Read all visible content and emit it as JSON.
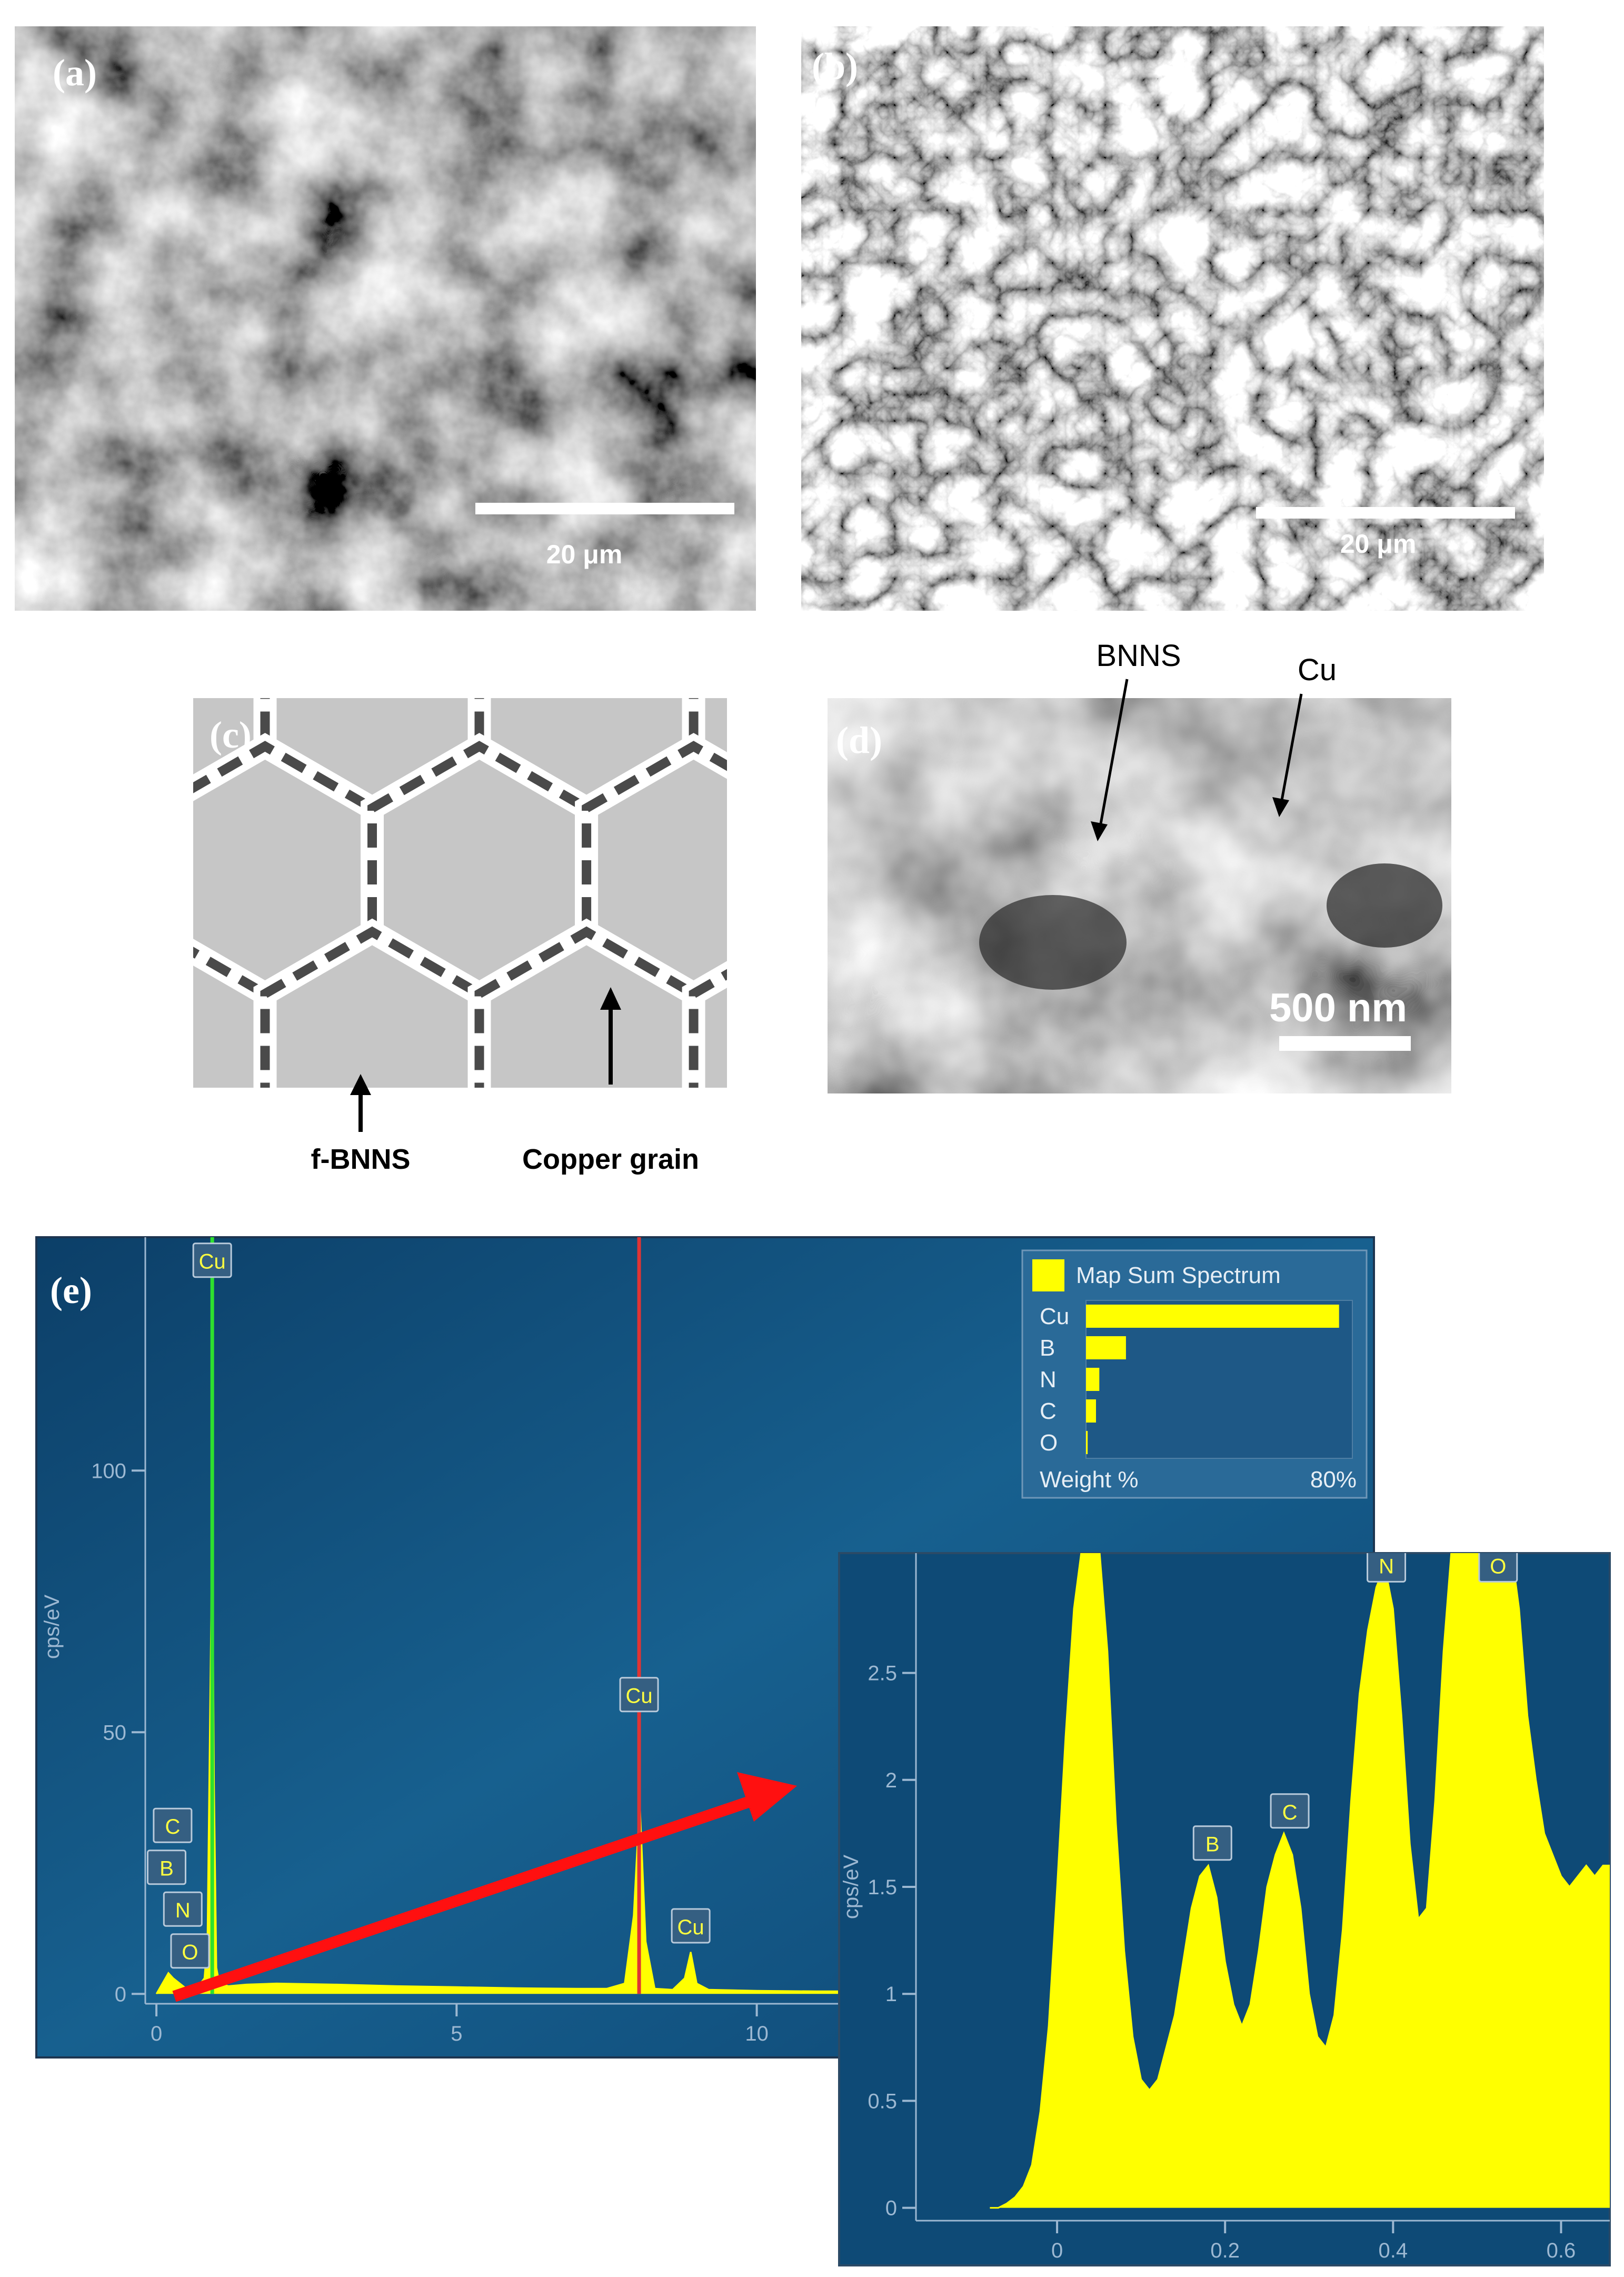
{
  "panels": {
    "a": {
      "label": "(a)",
      "scale_bar": "20 μm"
    },
    "b": {
      "label": "(b)",
      "scale_bar": "20 μm"
    },
    "c": {
      "label": "(c)",
      "annotations": [
        "f-BNNS",
        "Copper grain"
      ]
    },
    "d": {
      "label": "(d)",
      "annotations": [
        "BNNS",
        "Cu"
      ],
      "scale_bar": "500 nm"
    },
    "e": {
      "label": "(e)"
    }
  },
  "chart_data": [
    {
      "type": "area",
      "y_label": "cps/eV",
      "color": "#ffff00",
      "x": [
        0,
        0.1,
        0.2,
        0.28,
        0.39,
        0.5,
        0.6,
        0.7,
        0.8,
        0.85,
        0.9,
        0.93,
        0.96,
        1.0,
        1.05,
        1.2,
        1.5,
        2,
        3,
        4,
        5,
        6,
        7,
        7.5,
        7.8,
        7.95,
        8.05,
        8.15,
        8.3,
        8.6,
        8.8,
        8.9,
        9.0,
        9.2,
        10,
        11,
        11.5
      ],
      "values": [
        0,
        2,
        4,
        3,
        2,
        1,
        1,
        1.5,
        3,
        10,
        60,
        92,
        40,
        5,
        2,
        1.5,
        1.8,
        2,
        1.8,
        1.5,
        1.3,
        1.1,
        1,
        1,
        2,
        15,
        37,
        10,
        1,
        0.8,
        3,
        8,
        2,
        0.8,
        0.6,
        0.5,
        0.5
      ],
      "markers": [
        {
          "x": 0.93,
          "color": "#2ee02e"
        },
        {
          "x": 8.04,
          "color": "#e03434"
        }
      ],
      "peak_labels": [
        {
          "label": "Cu",
          "x": 0.93,
          "y": 140
        },
        {
          "label": "C",
          "x": 0.27,
          "y": 32
        },
        {
          "label": "B",
          "x": 0.17,
          "y": 24
        },
        {
          "label": "N",
          "x": 0.44,
          "y": 16
        },
        {
          "label": "O",
          "x": 0.56,
          "y": 8
        },
        {
          "label": "Cu",
          "x": 8.04,
          "y": 57
        },
        {
          "label": "Cu",
          "x": 8.9,
          "y": 12.8
        }
      ],
      "xlim": [
        -2,
        20.28
      ],
      "ylim": [
        -4.3,
        144.6
      ],
      "xticks": [
        0,
        5,
        10
      ],
      "yticks": [
        0,
        50,
        100
      ]
    },
    {
      "type": "area",
      "y_label": "cps/eV",
      "color": "#ffff00",
      "x": [
        -0.08,
        -0.07,
        -0.06,
        -0.05,
        -0.04,
        -0.03,
        -0.02,
        -0.01,
        0,
        0.01,
        0.02,
        0.03,
        0.04,
        0.05,
        0.06,
        0.07,
        0.08,
        0.09,
        0.1,
        0.11,
        0.12,
        0.13,
        0.14,
        0.15,
        0.16,
        0.17,
        0.18,
        0.19,
        0.2,
        0.21,
        0.22,
        0.23,
        0.24,
        0.25,
        0.26,
        0.27,
        0.28,
        0.29,
        0.3,
        0.31,
        0.32,
        0.33,
        0.34,
        0.35,
        0.36,
        0.37,
        0.38,
        0.39,
        0.4,
        0.41,
        0.42,
        0.43,
        0.44,
        0.45,
        0.46,
        0.47,
        0.48,
        0.49,
        0.5,
        0.51,
        0.52,
        0.53,
        0.54,
        0.55,
        0.56,
        0.57,
        0.58,
        0.59,
        0.6,
        0.61,
        0.62,
        0.63,
        0.64,
        0.65,
        0.66
      ],
      "values": [
        0,
        0,
        0.02,
        0.05,
        0.1,
        0.2,
        0.45,
        0.85,
        1.5,
        2.2,
        2.8,
        3.1,
        3.1,
        3.1,
        2.6,
        1.8,
        1.2,
        0.8,
        0.6,
        0.55,
        0.6,
        0.75,
        0.9,
        1.15,
        1.4,
        1.55,
        1.6,
        1.45,
        1.15,
        0.95,
        0.85,
        0.95,
        1.2,
        1.5,
        1.65,
        1.75,
        1.65,
        1.4,
        1.0,
        0.8,
        0.75,
        0.9,
        1.3,
        1.9,
        2.4,
        2.7,
        2.9,
        3.0,
        2.8,
        2.3,
        1.7,
        1.35,
        1.4,
        1.9,
        2.6,
        3.1,
        3.1,
        3.1,
        3.1,
        3.1,
        3.1,
        3.1,
        3.1,
        2.8,
        2.3,
        2.0,
        1.75,
        1.65,
        1.55,
        1.5,
        1.55,
        1.6,
        1.55,
        1.6,
        1.6
      ],
      "peak_labels": [
        {
          "label": "B",
          "x": 0.185,
          "y": 1.7
        },
        {
          "label": "C",
          "x": 0.277,
          "y": 1.85
        },
        {
          "label": "N",
          "x": 0.392,
          "y": 3.0
        },
        {
          "label": "O",
          "x": 0.525,
          "y": 3.0
        }
      ],
      "xlim": [
        -0.168,
        0.658
      ],
      "ylim": [
        -0.06,
        3.06
      ],
      "xticks": [
        0,
        0.2,
        0.4,
        0.6
      ],
      "yticks": [
        0,
        0.5,
        1,
        1.5,
        2,
        2.5
      ]
    },
    {
      "type": "hbar",
      "title": "Map Sum Spectrum",
      "color": "#ffff00",
      "categories": [
        "Cu",
        "B",
        "N",
        "C",
        "O"
      ],
      "values": [
        76,
        12,
        4,
        3,
        0.5
      ],
      "x_label": "Weight %",
      "xlim": [
        0,
        80
      ],
      "xticks": [
        {
          "value": 80,
          "label": "80%"
        }
      ]
    }
  ]
}
